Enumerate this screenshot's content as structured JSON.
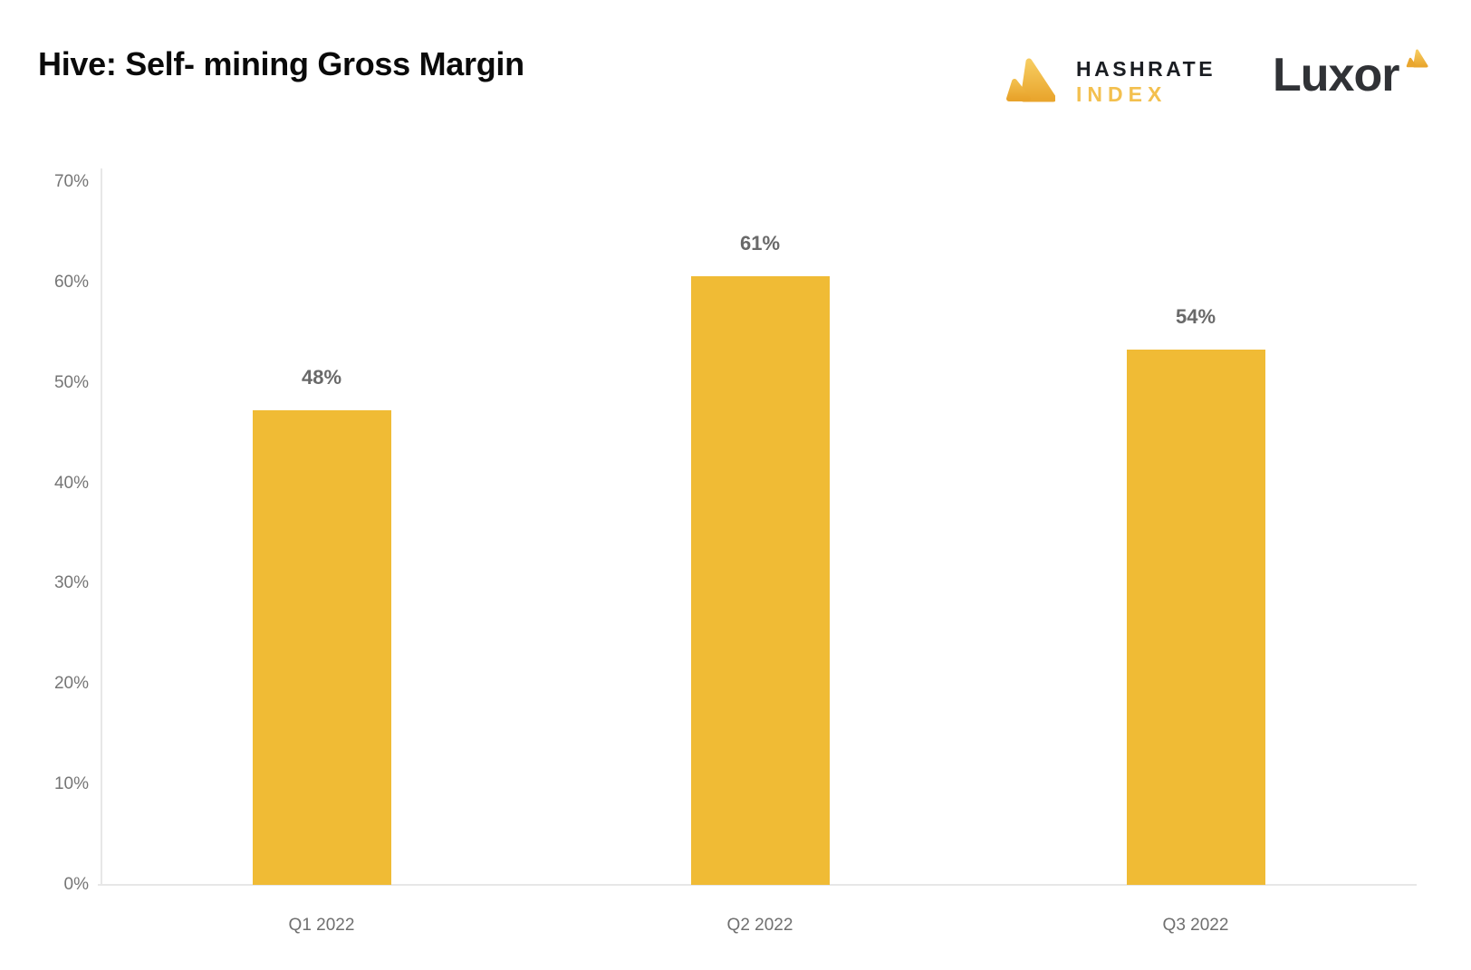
{
  "header": {
    "title": "Hive: Self- mining Gross Margin",
    "hashrate_index_logo": {
      "line1": "HASHRATE",
      "line2": "INDEX"
    },
    "luxor_logo": {
      "text": "Luxor"
    }
  },
  "colors": {
    "bar": "#F0BB35",
    "axis_line": "#E7E7E7",
    "ytick_label": "#757575",
    "data_label": "#696969",
    "category_label": "#6F6F6F",
    "title": "#0A0A0A",
    "hashrate_text_dark": "#1B1E23",
    "hashrate_text_gold": "#F3C04F",
    "luxor_text": "#303236",
    "logo_gold_light": "#F6CB5F",
    "logo_gold_dark": "#E9A62E"
  },
  "chart_data": {
    "type": "bar",
    "title": "Hive: Self- mining Gross Margin",
    "categories": [
      "Q1 2022",
      "Q2 2022",
      "Q3 2022"
    ],
    "values": [
      48,
      61,
      54
    ],
    "data_labels": [
      "48%",
      "61%",
      "54%"
    ],
    "rendered_bar_heights_pct": [
      47.3,
      60.6,
      53.3
    ],
    "xlabel": "",
    "ylabel": "",
    "ylim": [
      0,
      70
    ],
    "ytick_values": [
      0,
      10,
      20,
      30,
      40,
      50,
      60,
      70
    ],
    "ytick_labels": [
      "0%",
      "10%",
      "20%",
      "30%",
      "40%",
      "50%",
      "60%",
      "70%"
    ],
    "grid": false,
    "legend": false,
    "bar_color": "#F0BB35"
  }
}
